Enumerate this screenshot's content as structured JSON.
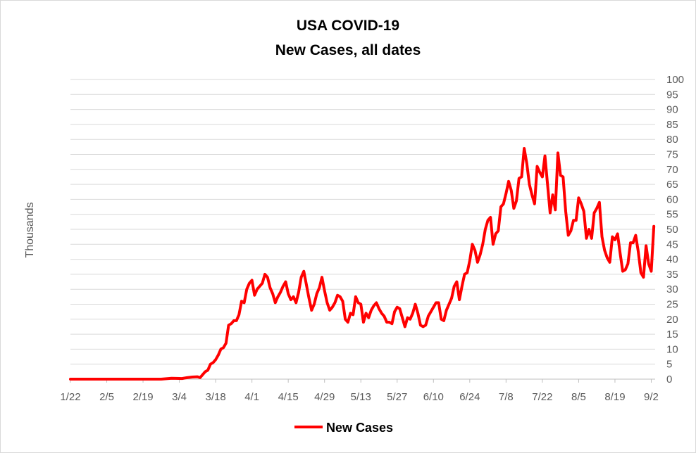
{
  "chart_data": {
    "type": "line",
    "title": "USA COVID-19",
    "subtitle": "New Cases, all dates",
    "xlabel": "",
    "ylabel": "Thousands",
    "ylim": [
      0,
      100
    ],
    "yticks": [
      "0",
      "5",
      "10",
      "15",
      "20",
      "25",
      "30",
      "35",
      "40",
      "45",
      "50",
      "55",
      "60",
      "65",
      "70",
      "75",
      "80",
      "85",
      "90",
      "95",
      "100"
    ],
    "xtick_labels": [
      "1/22",
      "2/5",
      "2/19",
      "3/4",
      "3/18",
      "4/1",
      "4/15",
      "4/29",
      "5/13",
      "5/27",
      "6/10",
      "6/24",
      "7/8",
      "7/22",
      "8/5",
      "8/19",
      "9/2"
    ],
    "grid": true,
    "legend": "bottom",
    "series": [
      {
        "name": "New Cases",
        "color": "#ff0000",
        "x_start": "1/22",
        "x_end": "9/3",
        "points": [
          [
            "1/22",
            0
          ],
          [
            "2/26",
            0
          ],
          [
            "3/1",
            0.3
          ],
          [
            "3/5",
            0.2
          ],
          [
            "3/7",
            0.5
          ],
          [
            "3/9",
            0.7
          ],
          [
            "3/11",
            0.8
          ],
          [
            "3/12",
            0.5
          ],
          [
            "3/13",
            1.5
          ],
          [
            "3/14",
            2.5
          ],
          [
            "3/15",
            3
          ],
          [
            "3/16",
            5
          ],
          [
            "3/17",
            5.5
          ],
          [
            "3/18",
            6.5
          ],
          [
            "3/19",
            8
          ],
          [
            "3/20",
            10
          ],
          [
            "3/21",
            10.5
          ],
          [
            "3/22",
            12
          ],
          [
            "3/23",
            18
          ],
          [
            "3/24",
            18.5
          ],
          [
            "3/25",
            19.5
          ],
          [
            "3/26",
            19.5
          ],
          [
            "3/27",
            21.5
          ],
          [
            "3/28",
            26
          ],
          [
            "3/29",
            25.5
          ],
          [
            "3/30",
            30
          ],
          [
            "3/31",
            32
          ],
          [
            "4/1",
            33
          ],
          [
            "4/2",
            28
          ],
          [
            "4/3",
            30
          ],
          [
            "4/4",
            31
          ],
          [
            "4/5",
            32
          ],
          [
            "4/6",
            35
          ],
          [
            "4/7",
            34
          ],
          [
            "4/8",
            30.5
          ],
          [
            "4/9",
            28.5
          ],
          [
            "4/10",
            25.5
          ],
          [
            "4/11",
            27.5
          ],
          [
            "4/12",
            29
          ],
          [
            "4/13",
            31
          ],
          [
            "4/14",
            32.5
          ],
          [
            "4/15",
            28.5
          ],
          [
            "4/16",
            26.5
          ],
          [
            "4/17",
            27.5
          ],
          [
            "4/18",
            25.5
          ],
          [
            "4/19",
            29
          ],
          [
            "4/20",
            34
          ],
          [
            "4/21",
            36
          ],
          [
            "4/22",
            31.5
          ],
          [
            "4/23",
            27
          ],
          [
            "4/24",
            23
          ],
          [
            "4/25",
            25
          ],
          [
            "4/26",
            28.5
          ],
          [
            "4/27",
            30.5
          ],
          [
            "4/28",
            34
          ],
          [
            "4/29",
            29.5
          ],
          [
            "4/30",
            25.5
          ],
          [
            "5/1",
            23
          ],
          [
            "5/2",
            24
          ],
          [
            "5/3",
            25.5
          ],
          [
            "5/4",
            28
          ],
          [
            "5/5",
            27.5
          ],
          [
            "5/6",
            26
          ],
          [
            "5/7",
            20
          ],
          [
            "5/8",
            19
          ],
          [
            "5/9",
            22
          ],
          [
            "5/10",
            21.5
          ],
          [
            "5/11",
            27.5
          ],
          [
            "5/12",
            25.5
          ],
          [
            "5/13",
            25
          ],
          [
            "5/14",
            19
          ],
          [
            "5/15",
            22
          ],
          [
            "5/16",
            20.5
          ],
          [
            "5/17",
            23
          ],
          [
            "5/18",
            24.5
          ],
          [
            "5/19",
            25.5
          ],
          [
            "5/20",
            23.5
          ],
          [
            "5/21",
            22
          ],
          [
            "5/22",
            21
          ],
          [
            "5/23",
            19
          ],
          [
            "5/24",
            19
          ],
          [
            "5/25",
            18.5
          ],
          [
            "5/26",
            22.5
          ],
          [
            "5/27",
            24
          ],
          [
            "5/28",
            23.5
          ],
          [
            "5/29",
            20.5
          ],
          [
            "5/30",
            17.5
          ],
          [
            "5/31",
            20.5
          ],
          [
            "6/1",
            20
          ],
          [
            "6/2",
            22
          ],
          [
            "6/3",
            25
          ],
          [
            "6/4",
            22
          ],
          [
            "6/5",
            18
          ],
          [
            "6/6",
            17.5
          ],
          [
            "6/7",
            18
          ],
          [
            "6/8",
            21
          ],
          [
            "6/9",
            22.5
          ],
          [
            "6/10",
            24
          ],
          [
            "6/11",
            25.5
          ],
          [
            "6/12",
            25.5
          ],
          [
            "6/13",
            20
          ],
          [
            "6/14",
            19.5
          ],
          [
            "6/15",
            23
          ],
          [
            "6/16",
            25
          ],
          [
            "6/17",
            27
          ],
          [
            "6/18",
            31
          ],
          [
            "6/19",
            32.5
          ],
          [
            "6/20",
            26.5
          ],
          [
            "6/21",
            31
          ],
          [
            "6/22",
            35
          ],
          [
            "6/23",
            35.5
          ],
          [
            "6/24",
            39.5
          ],
          [
            "6/25",
            45
          ],
          [
            "6/26",
            43
          ],
          [
            "6/27",
            39
          ],
          [
            "6/28",
            41.5
          ],
          [
            "6/29",
            45
          ],
          [
            "6/30",
            50
          ],
          [
            "7/1",
            53
          ],
          [
            "7/2",
            54
          ],
          [
            "7/3",
            45
          ],
          [
            "7/4",
            48.5
          ],
          [
            "7/5",
            49.5
          ],
          [
            "7/6",
            57.5
          ],
          [
            "7/7",
            58.5
          ],
          [
            "7/8",
            62
          ],
          [
            "7/9",
            66
          ],
          [
            "7/10",
            63
          ],
          [
            "7/11",
            57
          ],
          [
            "7/12",
            59.5
          ],
          [
            "7/13",
            67
          ],
          [
            "7/14",
            67.5
          ],
          [
            "7/15",
            77
          ],
          [
            "7/16",
            72
          ],
          [
            "7/17",
            65
          ],
          [
            "7/18",
            61.5
          ],
          [
            "7/19",
            58.5
          ],
          [
            "7/20",
            71
          ],
          [
            "7/21",
            69
          ],
          [
            "7/22",
            67.5
          ],
          [
            "7/23",
            74.5
          ],
          [
            "7/24",
            65
          ],
          [
            "7/25",
            55.5
          ],
          [
            "7/26",
            61.5
          ],
          [
            "7/27",
            56.5
          ],
          [
            "7/28",
            75.5
          ],
          [
            "7/29",
            68
          ],
          [
            "7/30",
            67.5
          ],
          [
            "7/31",
            56
          ],
          [
            "8/1",
            48
          ],
          [
            "8/2",
            49.5
          ],
          [
            "8/3",
            53
          ],
          [
            "8/4",
            53
          ],
          [
            "8/5",
            60.5
          ],
          [
            "8/6",
            58.5
          ],
          [
            "8/7",
            56
          ],
          [
            "8/8",
            47
          ],
          [
            "8/9",
            50
          ],
          [
            "8/10",
            47
          ],
          [
            "8/11",
            55.5
          ],
          [
            "8/12",
            57
          ],
          [
            "8/13",
            59
          ],
          [
            "8/14",
            47.5
          ],
          [
            "8/15",
            43
          ],
          [
            "8/16",
            40.5
          ],
          [
            "8/17",
            39
          ],
          [
            "8/18",
            47.5
          ],
          [
            "8/19",
            46.5
          ],
          [
            "8/20",
            48.5
          ],
          [
            "8/21",
            42
          ],
          [
            "8/22",
            36
          ],
          [
            "8/23",
            36.5
          ],
          [
            "8/24",
            38.5
          ],
          [
            "8/25",
            45.5
          ],
          [
            "8/26",
            45.5
          ],
          [
            "8/27",
            48
          ],
          [
            "8/28",
            42.5
          ],
          [
            "8/29",
            35.5
          ],
          [
            "8/30",
            34
          ],
          [
            "8/31",
            44.5
          ],
          [
            "9/1",
            38.5
          ],
          [
            "9/2",
            36
          ],
          [
            "9/3",
            51
          ]
        ]
      }
    ]
  }
}
